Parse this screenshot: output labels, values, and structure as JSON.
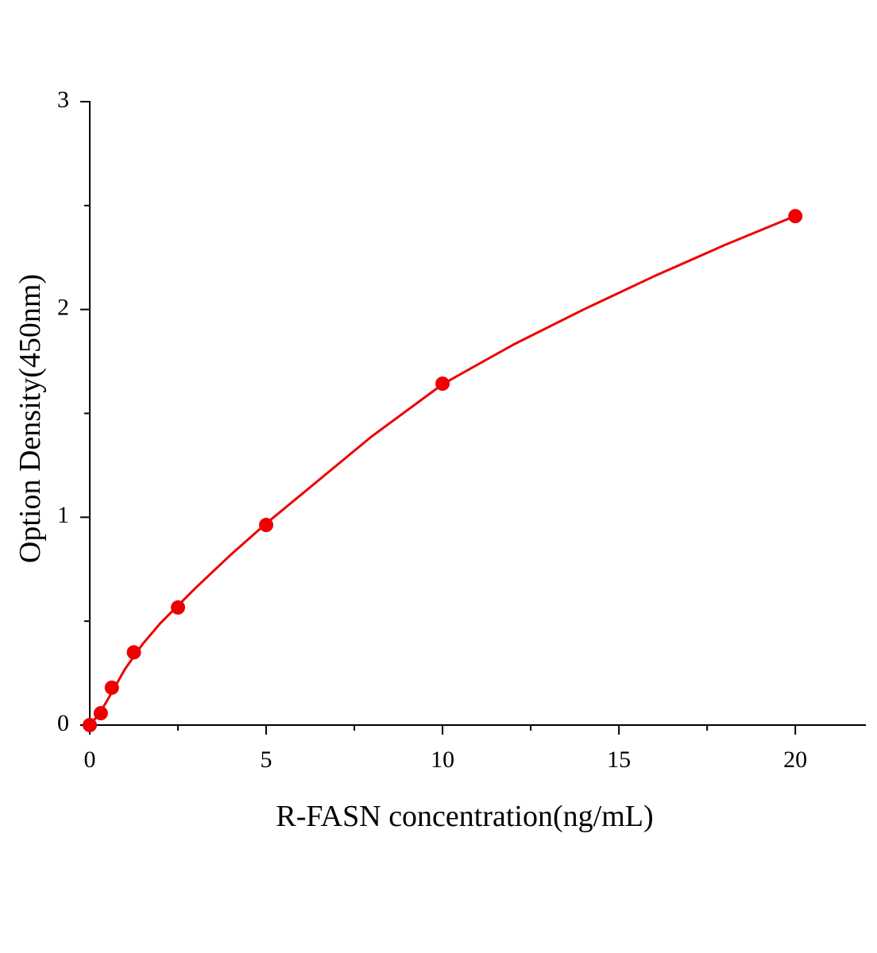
{
  "chart_data": {
    "type": "scatter",
    "x_label": "R-FASN concentration(ng/mL)",
    "y_label": "Option Density(450nm)",
    "xlim": [
      0,
      22
    ],
    "xticks": [
      0,
      5,
      10,
      15,
      20
    ],
    "xminorticks": [
      2.5,
      7.5,
      12.5,
      17.5
    ],
    "ylim": [
      0,
      3
    ],
    "yticks": [
      0,
      1,
      2,
      3
    ],
    "yminorticks": [
      0.5,
      1.5,
      2.5
    ],
    "series": [
      {
        "type": "scatter",
        "color": "#ee0000",
        "x": [
          0,
          0.3125,
          0.625,
          1.25,
          2.5,
          5,
          10,
          20
        ],
        "values": [
          0,
          0.057,
          0.18,
          0.35,
          0.566,
          0.963,
          1.643,
          2.449
        ]
      },
      {
        "type": "line",
        "color": "#ee0000",
        "x": [
          0,
          0.25,
          0.5,
          1,
          1.5,
          2,
          3,
          4,
          5,
          6,
          8,
          10,
          12,
          14,
          16,
          18,
          20
        ],
        "values": [
          0,
          0.05,
          0.12,
          0.27,
          0.39,
          0.49,
          0.66,
          0.82,
          0.97,
          1.11,
          1.39,
          1.64,
          1.83,
          2.0,
          2.16,
          2.31,
          2.45
        ]
      }
    ]
  }
}
